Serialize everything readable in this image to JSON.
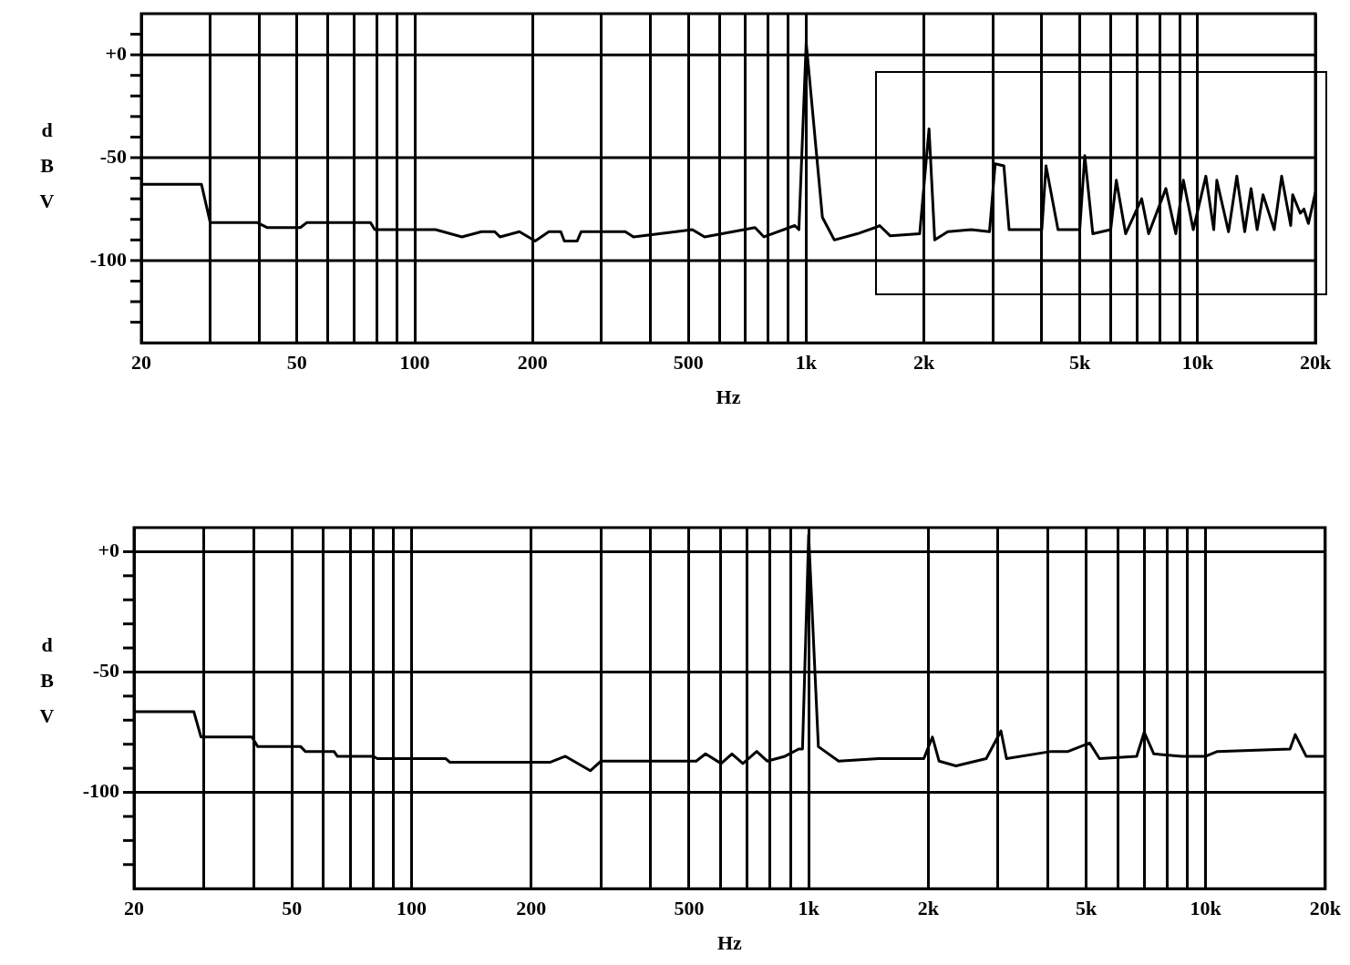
{
  "chart_data": [
    {
      "type": "line",
      "xlabel": "Hz",
      "ylabel": "dBV",
      "color": "#000000",
      "log": "x",
      "grid": true,
      "x": [
        20,
        28.5,
        30,
        39.5,
        42,
        51,
        53,
        77,
        79,
        113,
        132,
        148,
        160,
        165,
        185,
        203,
        220,
        236,
        241,
        260,
        266,
        345,
        362,
        512,
        550,
        650,
        740,
        780,
        935,
        958,
        1000,
        1100,
        1180,
        1350,
        1500,
        1540,
        1640,
        1950,
        2060,
        2130,
        2300,
        2640,
        2940,
        3040,
        3200,
        3300,
        3600,
        4000,
        4100,
        4400,
        5000,
        5150,
        5400,
        6000,
        6200,
        6550,
        7200,
        7500,
        8300,
        8800,
        9200,
        9750,
        10500,
        11000,
        11200,
        12000,
        12600,
        13200,
        13700,
        14200,
        14700,
        15700,
        16400,
        17300,
        17500,
        18300,
        18700,
        19200,
        20000
      ],
      "values": [
        -63,
        -63,
        -81.5,
        -81.5,
        -84,
        -84,
        -81.5,
        -81.5,
        -85,
        -85,
        -88.5,
        -86,
        -86,
        -88.5,
        -86,
        -90.5,
        -86,
        -86,
        -90.5,
        -90.5,
        -86,
        -86,
        -88.5,
        -85,
        -88.5,
        -86,
        -84,
        -88.5,
        -83,
        -85,
        6,
        -79,
        -90,
        -87,
        -84,
        -83,
        -88,
        -87,
        -36,
        -90,
        -86,
        -85,
        -86,
        -53,
        -54,
        -85,
        -85,
        -85,
        -54,
        -85,
        -85,
        -49,
        -87,
        -85,
        -61,
        -87,
        -70,
        -87,
        -65,
        -87,
        -61,
        -85,
        -59,
        -85,
        -61,
        -86,
        -59,
        -86,
        -65,
        -85,
        -68,
        -85,
        -59,
        -83,
        -68,
        -77,
        -75,
        -82,
        -67
      ],
      "xlim": [
        20,
        20000
      ],
      "ylim": [
        -140,
        20
      ],
      "xticks": [
        20,
        {
          "value": 30,
          "label": null
        },
        {
          "value": 40,
          "label": null
        },
        50,
        {
          "value": 60,
          "label": null
        },
        {
          "value": 70,
          "label": null
        },
        {
          "value": 80,
          "label": null
        },
        {
          "value": 90,
          "label": null
        },
        100,
        200,
        {
          "value": 300,
          "label": null
        },
        {
          "value": 400,
          "label": null
        },
        500,
        {
          "value": 600,
          "label": null
        },
        {
          "value": 700,
          "label": null
        },
        {
          "value": 800,
          "label": null
        },
        {
          "value": 900,
          "label": null
        },
        {
          "value": 1000,
          "label": "1k"
        },
        {
          "value": 2000,
          "label": "2k"
        },
        {
          "value": 3000,
          "label": null
        },
        {
          "value": 4000,
          "label": null
        },
        {
          "value": 5000,
          "label": "5k"
        },
        {
          "value": 6000,
          "label": null
        },
        {
          "value": 7000,
          "label": null
        },
        {
          "value": 8000,
          "label": null
        },
        {
          "value": 9000,
          "label": null
        },
        {
          "value": 10000,
          "label": "10k"
        },
        {
          "value": 20000,
          "label": "20k"
        }
      ],
      "yticks": [
        {
          "value": 10,
          "label": null
        },
        {
          "value": 0,
          "label": "+0"
        },
        {
          "value": -10,
          "label": null
        },
        {
          "value": -20,
          "label": null
        },
        {
          "value": -30,
          "label": null
        },
        {
          "value": -40,
          "label": null
        },
        {
          "value": -50,
          "label": "-50"
        },
        {
          "value": -60,
          "label": null
        },
        {
          "value": -70,
          "label": null
        },
        {
          "value": -80,
          "label": null
        },
        {
          "value": -90,
          "label": null
        },
        {
          "value": -100,
          "label": "-100"
        },
        {
          "value": -110,
          "label": null
        },
        {
          "value": -120,
          "label": null
        },
        {
          "value": -130,
          "label": null
        }
      ]
    },
    {
      "type": "line",
      "xlabel": "Hz",
      "ylabel": "dBV",
      "color": "#000000",
      "log": "x",
      "grid": true,
      "x": [
        20,
        28.3,
        29.5,
        39.6,
        41,
        52.6,
        54,
        63.8,
        65,
        80,
        82,
        122,
        125,
        223,
        244,
        282,
        300,
        521,
        550,
        602,
        641,
        683,
        740,
        786,
        872,
        944,
        965,
        1000,
        1058,
        1190,
        1500,
        1950,
        2050,
        2130,
        2350,
        2800,
        3050,
        3150,
        4080,
        4500,
        5100,
        5400,
        6700,
        7000,
        7400,
        8700,
        10000,
        10700,
        16300,
        16800,
        17900,
        20000
      ],
      "values": [
        -66.5,
        -66.5,
        -77,
        -77,
        -81,
        -81,
        -83,
        -83,
        -85,
        -85,
        -86,
        -86,
        -87.5,
        -87.5,
        -85,
        -91,
        -87,
        -87,
        -84,
        -88,
        -84,
        -88,
        -83,
        -87,
        -85,
        -82,
        -82,
        7,
        -81,
        -87,
        -86,
        -86,
        -77,
        -87,
        -89,
        -86,
        -74.5,
        -86,
        -83,
        -83,
        -79.5,
        -86,
        -85,
        -75,
        -84,
        -85,
        -85,
        -83,
        -82,
        -76,
        -85,
        -85
      ],
      "xlim": [
        20,
        20000
      ],
      "ylim": [
        -140,
        10
      ],
      "xticks": [
        20,
        {
          "value": 30,
          "label": null
        },
        {
          "value": 40,
          "label": null
        },
        50,
        {
          "value": 60,
          "label": null
        },
        {
          "value": 70,
          "label": null
        },
        {
          "value": 80,
          "label": null
        },
        {
          "value": 90,
          "label": null
        },
        100,
        200,
        {
          "value": 300,
          "label": null
        },
        {
          "value": 400,
          "label": null
        },
        500,
        {
          "value": 600,
          "label": null
        },
        {
          "value": 700,
          "label": null
        },
        {
          "value": 800,
          "label": null
        },
        {
          "value": 900,
          "label": null
        },
        {
          "value": 1000,
          "label": "1k"
        },
        {
          "value": 2000,
          "label": "2k"
        },
        {
          "value": 3000,
          "label": null
        },
        {
          "value": 4000,
          "label": null
        },
        {
          "value": 5000,
          "label": "5k"
        },
        {
          "value": 6000,
          "label": null
        },
        {
          "value": 7000,
          "label": null
        },
        {
          "value": 8000,
          "label": null
        },
        {
          "value": 9000,
          "label": null
        },
        {
          "value": 10000,
          "label": "10k"
        },
        {
          "value": 20000,
          "label": "20k"
        }
      ],
      "yticks": [
        {
          "value": 0,
          "label": "+0"
        },
        {
          "value": -10,
          "label": null
        },
        {
          "value": -20,
          "label": null
        },
        {
          "value": -30,
          "label": null
        },
        {
          "value": -40,
          "label": null
        },
        {
          "value": -50,
          "label": "-50"
        },
        {
          "value": -60,
          "label": null
        },
        {
          "value": -70,
          "label": null
        },
        {
          "value": -80,
          "label": null
        },
        {
          "value": -90,
          "label": null
        },
        {
          "value": -100,
          "label": "-100"
        },
        {
          "value": -110,
          "label": null
        },
        {
          "value": -120,
          "label": null
        },
        {
          "value": -130,
          "label": null
        }
      ]
    }
  ]
}
